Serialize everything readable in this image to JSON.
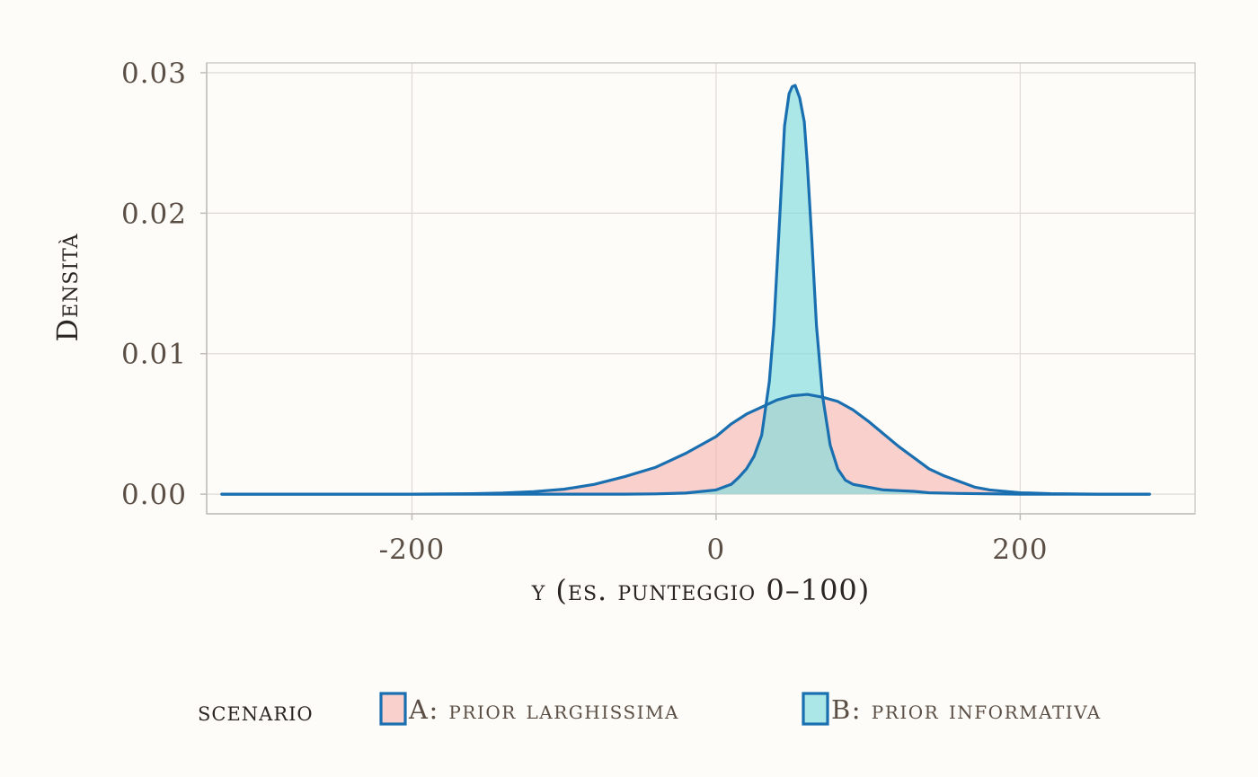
{
  "chart_data": {
    "type": "area",
    "title": "",
    "xlabel": "y (es. punteggio 0–100)",
    "ylabel": "Densità",
    "xlim": [
      -335,
      315
    ],
    "ylim": [
      -0.0014,
      0.0307
    ],
    "x_ticks": [
      -200,
      0,
      200
    ],
    "x_tick_labels": [
      "-200",
      "0",
      "200"
    ],
    "y_ticks": [
      0,
      0.01,
      0.02,
      0.03
    ],
    "y_tick_labels": [
      "0.00",
      "0.01",
      "0.02",
      "0.03"
    ],
    "grid": true,
    "legend": {
      "title": "scenario",
      "position": "bottom"
    },
    "series": [
      {
        "name": "A: prior larghissima",
        "fill": "#f8b4b0",
        "fill_opacity": 0.62,
        "stroke": "#1a6fb0",
        "points": [
          [
            -325,
            0.0
          ],
          [
            -250,
            0.0
          ],
          [
            -200,
            0.0
          ],
          [
            -160,
            3e-05
          ],
          [
            -140,
            8e-05
          ],
          [
            -120,
            0.00018
          ],
          [
            -100,
            0.00035
          ],
          [
            -80,
            0.0007
          ],
          [
            -60,
            0.00125
          ],
          [
            -40,
            0.0019
          ],
          [
            -20,
            0.0029
          ],
          [
            0,
            0.0041
          ],
          [
            10,
            0.005
          ],
          [
            20,
            0.0057
          ],
          [
            30,
            0.0062
          ],
          [
            40,
            0.0067
          ],
          [
            50,
            0.007
          ],
          [
            60,
            0.0071
          ],
          [
            70,
            0.0069
          ],
          [
            80,
            0.0066
          ],
          [
            90,
            0.006
          ],
          [
            100,
            0.0052
          ],
          [
            110,
            0.0043
          ],
          [
            120,
            0.0034
          ],
          [
            130,
            0.0026
          ],
          [
            140,
            0.0018
          ],
          [
            150,
            0.0013
          ],
          [
            160,
            0.0009
          ],
          [
            170,
            0.0005
          ],
          [
            180,
            0.0003
          ],
          [
            200,
            0.0001
          ],
          [
            220,
            3e-05
          ],
          [
            250,
            0.0
          ],
          [
            285,
            0.0
          ]
        ]
      },
      {
        "name": "B: prior informativa",
        "fill": "#7fdcdc",
        "fill_opacity": 0.66,
        "stroke": "#1a6fb0",
        "points": [
          [
            -325,
            0.0
          ],
          [
            -100,
            0.0
          ],
          [
            -60,
            0.0
          ],
          [
            -40,
            2e-05
          ],
          [
            -20,
            8e-05
          ],
          [
            0,
            0.0003
          ],
          [
            10,
            0.0007
          ],
          [
            15,
            0.0012
          ],
          [
            20,
            0.0018
          ],
          [
            25,
            0.0027
          ],
          [
            30,
            0.0042
          ],
          [
            35,
            0.008
          ],
          [
            38,
            0.012
          ],
          [
            42,
            0.02
          ],
          [
            45,
            0.0262
          ],
          [
            48,
            0.0285
          ],
          [
            50,
            0.029
          ],
          [
            52,
            0.0291
          ],
          [
            55,
            0.0282
          ],
          [
            58,
            0.0265
          ],
          [
            60,
            0.0235
          ],
          [
            63,
            0.018
          ],
          [
            66,
            0.012
          ],
          [
            70,
            0.007
          ],
          [
            75,
            0.0035
          ],
          [
            80,
            0.0018
          ],
          [
            85,
            0.001
          ],
          [
            90,
            0.0007
          ],
          [
            100,
            0.0005
          ],
          [
            110,
            0.0003
          ],
          [
            120,
            0.00025
          ],
          [
            130,
            0.0002
          ],
          [
            140,
            0.0001
          ],
          [
            160,
            5e-05
          ],
          [
            200,
            0.0
          ],
          [
            285,
            0.0
          ]
        ]
      }
    ]
  }
}
